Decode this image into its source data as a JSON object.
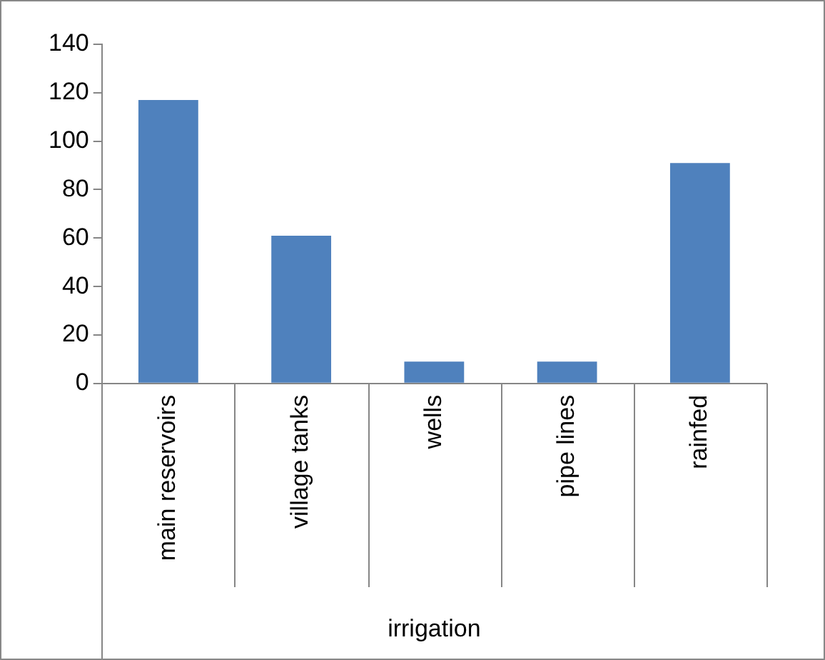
{
  "chart_data": {
    "type": "bar",
    "xlabel": "irrigation",
    "categories": [
      "main reservoirs",
      "village tanks",
      "wells",
      "pipe lines",
      "rainfed"
    ],
    "values": [
      117,
      61,
      9,
      9,
      91
    ],
    "color": "#4f81bd",
    "ylim": [
      0,
      140
    ],
    "yticks": [
      0,
      20,
      40,
      60,
      80,
      100,
      120,
      140
    ],
    "grid": false,
    "legend": false
  }
}
